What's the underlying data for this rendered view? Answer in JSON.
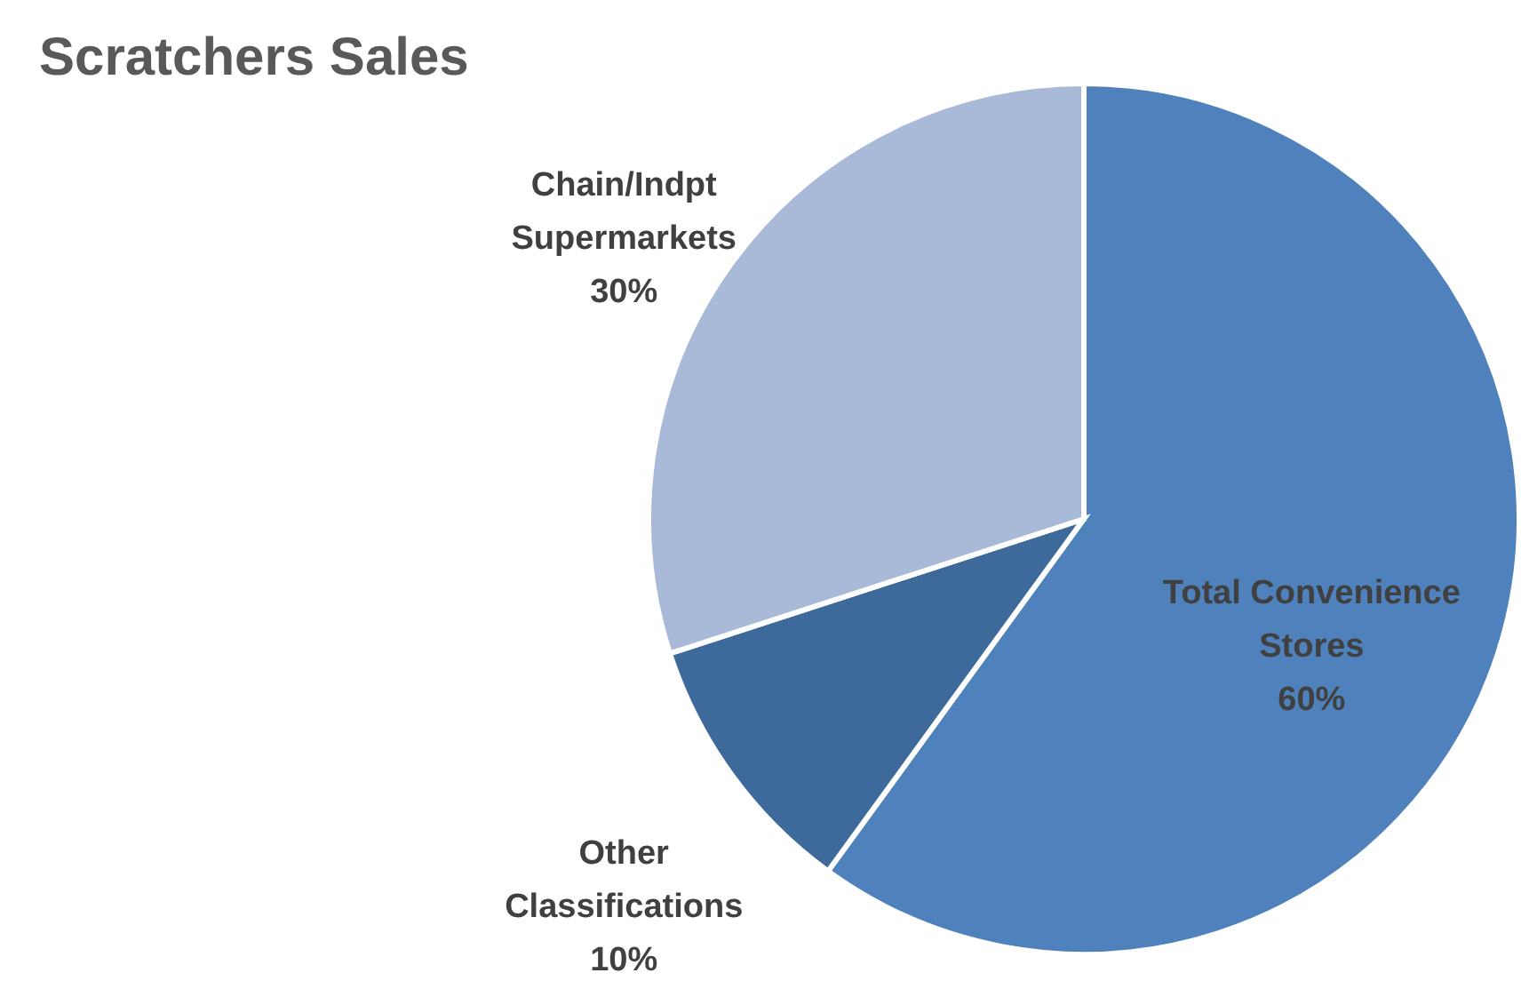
{
  "chart_data": {
    "type": "pie",
    "title": "Scratchers Sales",
    "categories": [
      "Total Convenience Stores",
      "Other Classifications",
      "Chain/Indpt Supermarkets"
    ],
    "values": [
      60,
      10,
      30
    ],
    "colors": [
      "#4f81bd",
      "#3e6a9b",
      "#a9b9d8"
    ],
    "value_labels": [
      "60%",
      "10%",
      "30%"
    ]
  }
}
